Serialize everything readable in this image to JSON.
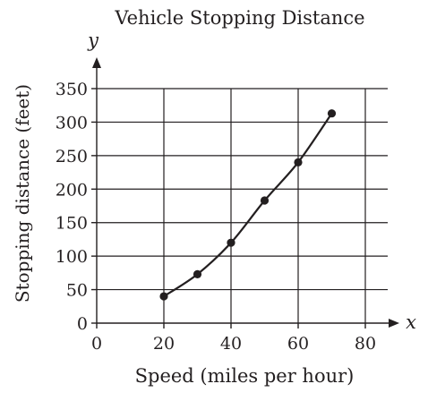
{
  "chart_data": {
    "type": "scatter",
    "title": "Vehicle Stopping Distance",
    "xlabel": "Speed (miles per hour)",
    "ylabel": "Stopping distance (feet)",
    "x_axis_letter": "x",
    "y_axis_letter": "y",
    "xlim": [
      0,
      80
    ],
    "ylim": [
      0,
      350
    ],
    "x_ticks": [
      0,
      20,
      40,
      60,
      80
    ],
    "y_ticks": [
      0,
      50,
      100,
      150,
      200,
      250,
      300,
      350
    ],
    "x_tick_labels": [
      "0",
      "20",
      "40",
      "60",
      "80"
    ],
    "y_tick_labels": [
      "0",
      "50",
      "100",
      "150",
      "200",
      "250",
      "300",
      "350"
    ],
    "grid": true,
    "series": [
      {
        "points": [
          {
            "x": 20,
            "y": 40
          },
          {
            "x": 30,
            "y": 73
          },
          {
            "x": 40,
            "y": 120
          },
          {
            "x": 50,
            "y": 183
          },
          {
            "x": 60,
            "y": 240
          },
          {
            "x": 70,
            "y": 313
          }
        ],
        "fit_curve": true
      }
    ]
  }
}
